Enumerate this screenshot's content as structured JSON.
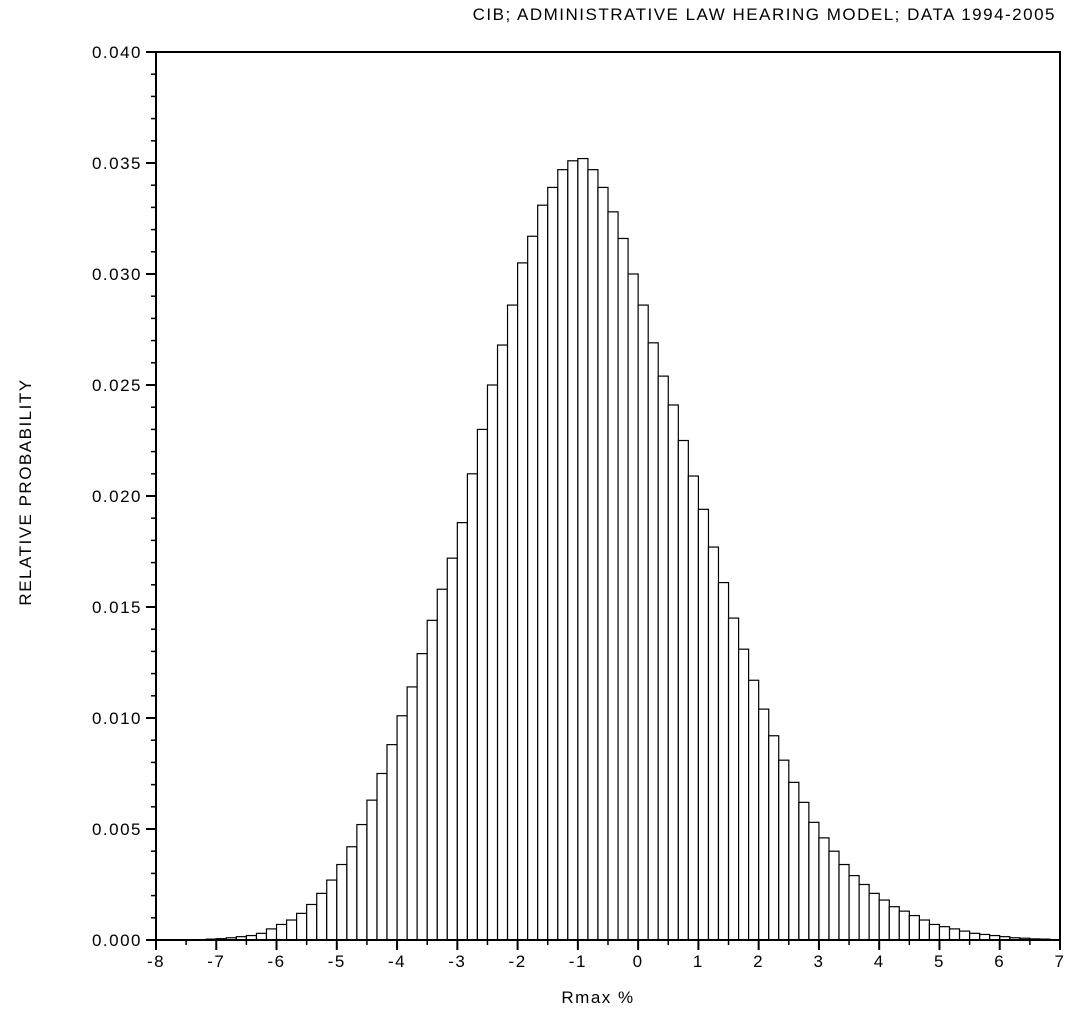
{
  "chart_data": {
    "type": "histogram",
    "title": "CIB; ADMINISTRATIVE LAW HEARING MODEL; DATA 1994-2005",
    "x_label": "Rmax %",
    "y_label": "RELATIVE PROBABILITY",
    "color": "#ffffff",
    "edge_color": "#000000",
    "bins": [
      -7.167,
      -7,
      -6.833,
      -6.667,
      -6.5,
      -6.333,
      -6.167,
      -6,
      -5.833,
      -5.667,
      -5.5,
      -5.333,
      -5.167,
      -5,
      -4.833,
      -4.667,
      -4.5,
      -4.333,
      -4.167,
      -4,
      -3.833,
      -3.667,
      -3.5,
      -3.333,
      -3.167,
      -3,
      -2.833,
      -2.667,
      -2.5,
      -2.333,
      -2.167,
      -2,
      -1.833,
      -1.667,
      -1.5,
      -1.333,
      -1.167,
      -1,
      -0.833,
      -0.667,
      -0.5,
      -0.333,
      -0.167,
      0,
      0.167,
      0.333,
      0.5,
      0.667,
      0.833,
      1,
      1.167,
      1.333,
      1.5,
      1.667,
      1.833,
      2,
      2.167,
      2.333,
      2.5,
      2.667,
      2.833,
      3,
      3.167,
      3.333,
      3.5,
      3.667,
      3.833,
      4,
      4.167,
      4.333,
      4.5,
      4.667,
      4.833,
      5,
      5.167,
      5.333,
      5.5,
      5.667,
      5.833,
      6,
      6.167,
      6.333,
      6.5,
      6.667,
      6.833
    ],
    "values": [
      4e-05,
      6e-05,
      0.0001,
      0.00015,
      0.0002,
      0.0003,
      0.0005,
      0.0007,
      0.0009,
      0.0012,
      0.0016,
      0.0021,
      0.0027,
      0.0034,
      0.0042,
      0.0052,
      0.0063,
      0.0075,
      0.0088,
      0.0101,
      0.0114,
      0.0129,
      0.0144,
      0.0158,
      0.0172,
      0.0188,
      0.021,
      0.023,
      0.025,
      0.0268,
      0.0286,
      0.0305,
      0.0317,
      0.0331,
      0.0339,
      0.0347,
      0.0351,
      0.0352,
      0.0347,
      0.0339,
      0.0328,
      0.0316,
      0.03,
      0.0286,
      0.0269,
      0.0254,
      0.0241,
      0.0225,
      0.0209,
      0.0194,
      0.0177,
      0.0161,
      0.0145,
      0.0131,
      0.0117,
      0.0104,
      0.0092,
      0.0081,
      0.0071,
      0.0062,
      0.0053,
      0.0046,
      0.004,
      0.0034,
      0.0029,
      0.0025,
      0.0021,
      0.0018,
      0.0015,
      0.0013,
      0.0011,
      0.0009,
      0.0007,
      0.0006,
      0.0005,
      0.0004,
      0.0003,
      0.00025,
      0.0002,
      0.00015,
      0.0001,
      8e-05,
      5e-05,
      4e-05
    ],
    "xlim": [
      -8,
      7
    ],
    "xticks": [
      -8,
      -7,
      -6,
      -5,
      -4,
      -3,
      -2,
      -1,
      0,
      1,
      2,
      3,
      4,
      5,
      6,
      7
    ],
    "ylim": [
      0,
      0.04
    ],
    "yticks": [
      {
        "value": 0,
        "label": "0.000"
      },
      {
        "value": 0.005,
        "label": "0.005"
      },
      {
        "value": 0.01,
        "label": "0.010"
      },
      {
        "value": 0.015,
        "label": "0.015"
      },
      {
        "value": 0.02,
        "label": "0.020"
      },
      {
        "value": 0.025,
        "label": "0.025"
      },
      {
        "value": 0.03,
        "label": "0.030"
      },
      {
        "value": 0.035,
        "label": "0.035"
      },
      {
        "value": 0.04,
        "label": "0.040"
      }
    ],
    "grid": false
  }
}
